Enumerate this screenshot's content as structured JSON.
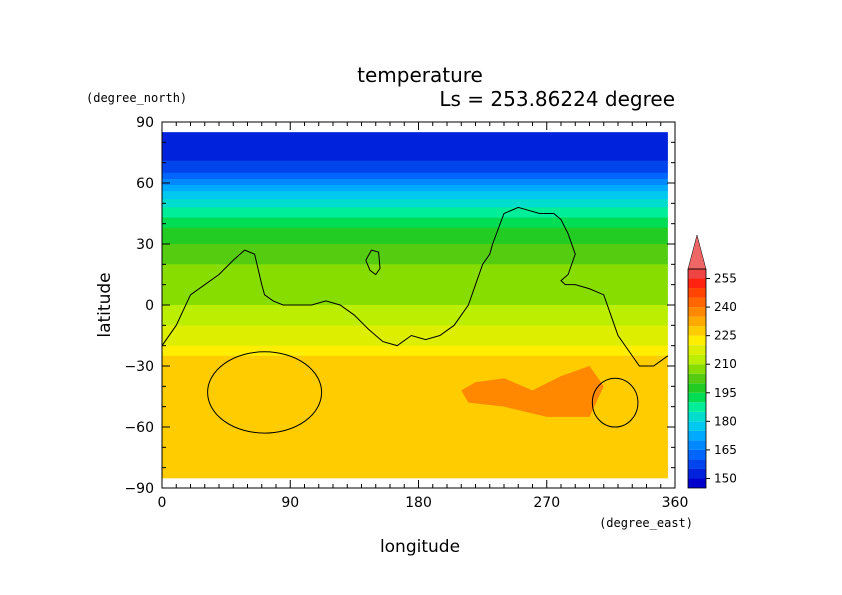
{
  "chart_data": {
    "type": "heatmap",
    "title": "temperature",
    "subtitle": "Ls = 253.86224 degree",
    "xlabel": "longitude",
    "ylabel": "latitude",
    "x_units": "(degree_east)",
    "y_units": "(degree_north)",
    "xlim": [
      0,
      360
    ],
    "ylim": [
      -90,
      90
    ],
    "x_ticks": [
      "0",
      "90",
      "180",
      "270",
      "360"
    ],
    "y_ticks": [
      "90",
      "60",
      "30",
      "0",
      "−30",
      "−60",
      "−90"
    ],
    "x_tick_values": [
      0,
      90,
      180,
      270,
      360
    ],
    "y_tick_values": [
      90,
      60,
      30,
      0,
      -30,
      -60,
      -90
    ],
    "colorbar": {
      "labels": [
        "255",
        "240",
        "225",
        "210",
        "195",
        "180",
        "165",
        "150"
      ],
      "label_values": [
        255,
        240,
        225,
        210,
        195,
        180,
        165,
        150
      ],
      "levels": [
        145,
        150,
        155,
        160,
        165,
        170,
        175,
        180,
        185,
        190,
        195,
        200,
        205,
        210,
        215,
        220,
        225,
        230,
        235,
        240,
        245,
        250,
        255,
        260
      ],
      "colors": [
        "#0000cc",
        "#0022dd",
        "#0044ee",
        "#0066ff",
        "#0088ff",
        "#00aaff",
        "#00c8ee",
        "#00ddcc",
        "#00ee99",
        "#00dd55",
        "#22cc22",
        "#55cc11",
        "#88dd00",
        "#bbee00",
        "#ddee00",
        "#ffee00",
        "#ffcc00",
        "#ffaa00",
        "#ff8800",
        "#ff6600",
        "#ff4400",
        "#ff2211",
        "#ee4444"
      ],
      "over_color": "#ee6666"
    },
    "lat_profile": {
      "lat": [
        85,
        75,
        65,
        58,
        52,
        45,
        38,
        30,
        20,
        10,
        0,
        -10,
        -20,
        -25,
        -40,
        -60,
        -75,
        -85
      ],
      "temp": [
        150,
        152,
        160,
        172,
        180,
        188,
        195,
        200,
        205,
        208,
        210,
        215,
        220,
        225,
        228,
        228,
        225,
        230
      ]
    },
    "warm_region": {
      "lon": [
        210,
        220,
        240,
        260,
        280,
        300,
        310,
        300,
        270,
        240,
        215
      ],
      "lat": [
        -42,
        -38,
        -36,
        -42,
        -35,
        -30,
        -40,
        -55,
        -55,
        -50,
        -48
      ],
      "temp": 236
    },
    "contours": [
      {
        "name": "topography-line",
        "lon": [
          0,
          10,
          20,
          30,
          40,
          50,
          58,
          65,
          70,
          72,
          78,
          85,
          95,
          105,
          115,
          125,
          135,
          145,
          155,
          165,
          175,
          185,
          195,
          205,
          215,
          220,
          225,
          230,
          232,
          240,
          250,
          255,
          265,
          275,
          280,
          285,
          290,
          285,
          280,
          283,
          290,
          300,
          310,
          315,
          320,
          335,
          345,
          355
        ],
        "lat": [
          -20,
          -10,
          5,
          10,
          15,
          22,
          27,
          25,
          10,
          5,
          2,
          0,
          0,
          0,
          2,
          0,
          -5,
          -12,
          -18,
          -20,
          -15,
          -17,
          -15,
          -10,
          0,
          10,
          20,
          25,
          30,
          45,
          48,
          47,
          45,
          45,
          42,
          35,
          25,
          15,
          12,
          10,
          10,
          8,
          5,
          -5,
          -15,
          -30,
          -30,
          -25
        ]
      },
      {
        "name": "small-contour-north",
        "lon": [
          143,
          147,
          152,
          153,
          150,
          146,
          143
        ],
        "lat": [
          22,
          27,
          26,
          18,
          15,
          17,
          22
        ]
      },
      {
        "name": "crater-hellas",
        "center_lon": 72,
        "center_lat": -43,
        "radius_lon": 40,
        "radius_lat": 20
      },
      {
        "name": "crater-argyre",
        "center_lon": 318,
        "center_lat": -48,
        "radius_lon": 16,
        "radius_lat": 12
      }
    ]
  }
}
